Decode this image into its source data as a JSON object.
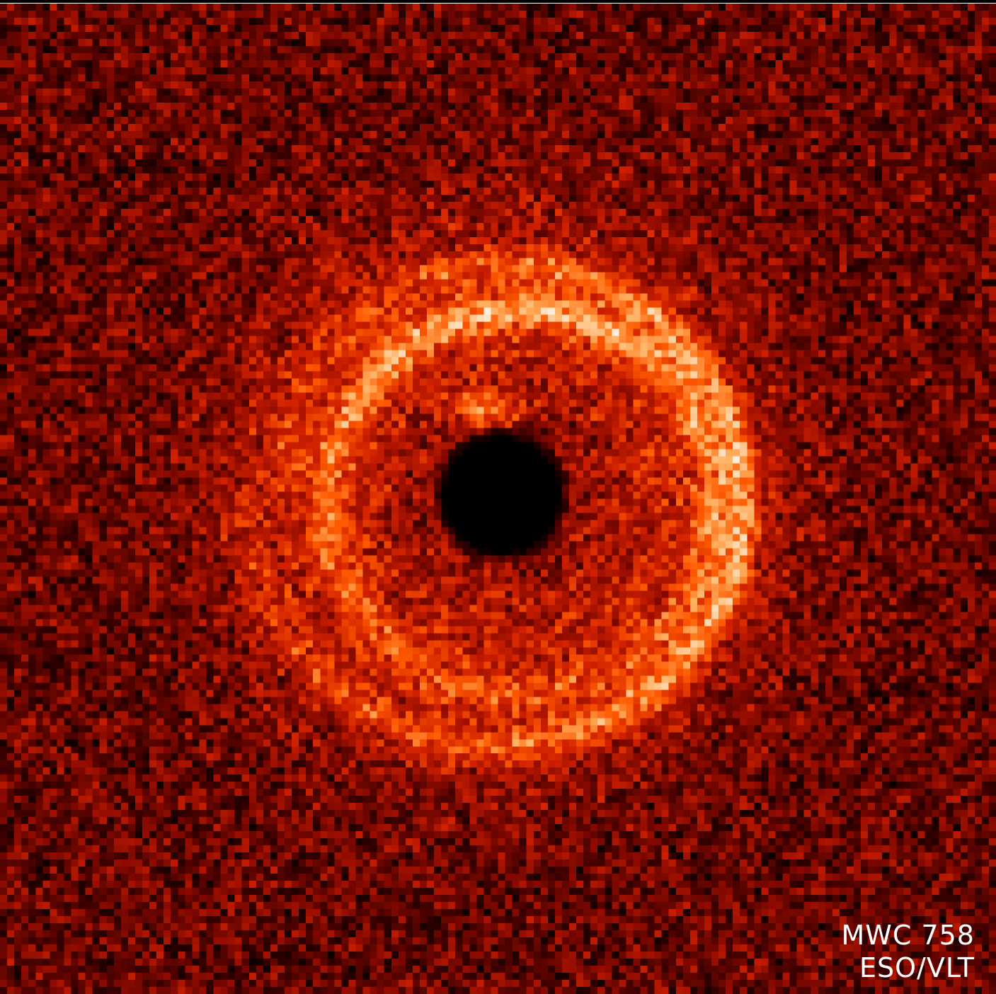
{
  "image": {
    "object_label": "MWC 758",
    "credit_label": "ESO/VLT",
    "colormap": [
      "#000000",
      "#3a0000",
      "#8a0a00",
      "#d02000",
      "#ff5a00",
      "#ffb060",
      "#fff0e0"
    ]
  }
}
